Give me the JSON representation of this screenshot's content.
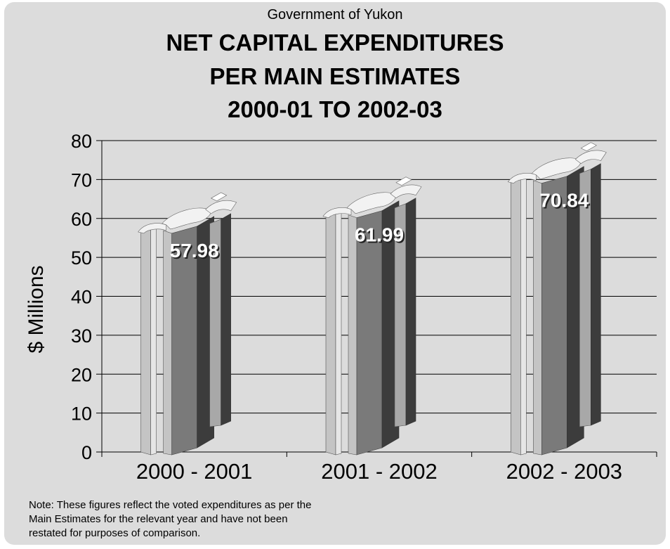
{
  "chart_data": {
    "type": "bar",
    "subtitle": "Government of Yukon",
    "title_lines": [
      "NET CAPITAL EXPENDITURES",
      "PER MAIN ESTIMATES",
      "2000-01 TO 2002-03"
    ],
    "ylabel": "$ Millions",
    "ylim": [
      0,
      80
    ],
    "yticks": [
      "0",
      "10",
      "20",
      "30",
      "40",
      "50",
      "60",
      "70",
      "80"
    ],
    "categories": [
      "2000 - 2001",
      "2001 - 2002",
      "2002 - 2003"
    ],
    "values": [
      57.98,
      61.99,
      70.84
    ],
    "value_labels": [
      "57.98",
      "61.99",
      "70.84"
    ],
    "bar_shape": "dollar-sign",
    "grid": true
  },
  "note": {
    "lines": [
      "Note: These figures reflect the voted expenditures as per the",
      "Main Estimates for the relevant year and have not been",
      "restated for purposes of comparison."
    ]
  },
  "colors": {
    "panel": "#dcdcdc",
    "bar_light": "#c4c4c4",
    "bar_mid": "#7a7a7a",
    "bar_dark": "#3c3c3c",
    "bar_top": "#f2f2f2"
  }
}
